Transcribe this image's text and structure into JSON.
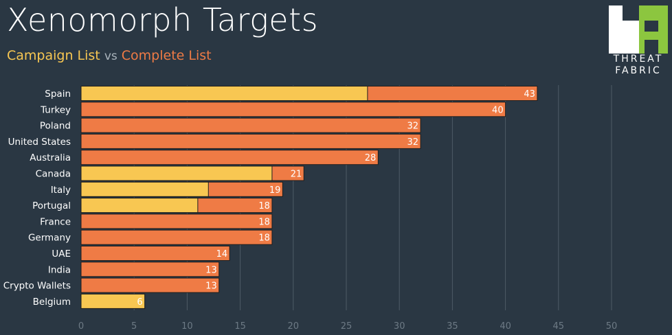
{
  "title": "Xenomorph Targets",
  "subtitle": {
    "a": "Campaign List",
    "vs": "vs",
    "b": "Complete List"
  },
  "logo": {
    "line1": "THREAT",
    "line2": "FABRIC"
  },
  "colors": {
    "campaign": "#f8c752",
    "complete": "#ef7b45",
    "background": "#2a3743",
    "grid": "#4e5b66"
  },
  "chart_data": {
    "type": "bar",
    "orientation": "horizontal",
    "stacked_overlay": true,
    "categories": [
      "Spain",
      "Turkey",
      "Poland",
      "United States",
      "Australia",
      "Canada",
      "Italy",
      "Portugal",
      "France",
      "Germany",
      "UAE",
      "India",
      "Crypto Wallets",
      "Belgium"
    ],
    "series": [
      {
        "name": "Complete List",
        "values": [
          43,
          40,
          32,
          32,
          28,
          21,
          19,
          18,
          18,
          18,
          14,
          13,
          13,
          6
        ]
      },
      {
        "name": "Campaign List",
        "values": [
          27,
          0,
          0,
          0,
          0,
          18,
          12,
          11,
          0,
          0,
          0,
          0,
          0,
          6
        ]
      }
    ],
    "xlim": [
      0,
      50
    ],
    "xticks": [
      0,
      5,
      10,
      15,
      20,
      25,
      30,
      35,
      40,
      45,
      50
    ],
    "grid": true
  }
}
